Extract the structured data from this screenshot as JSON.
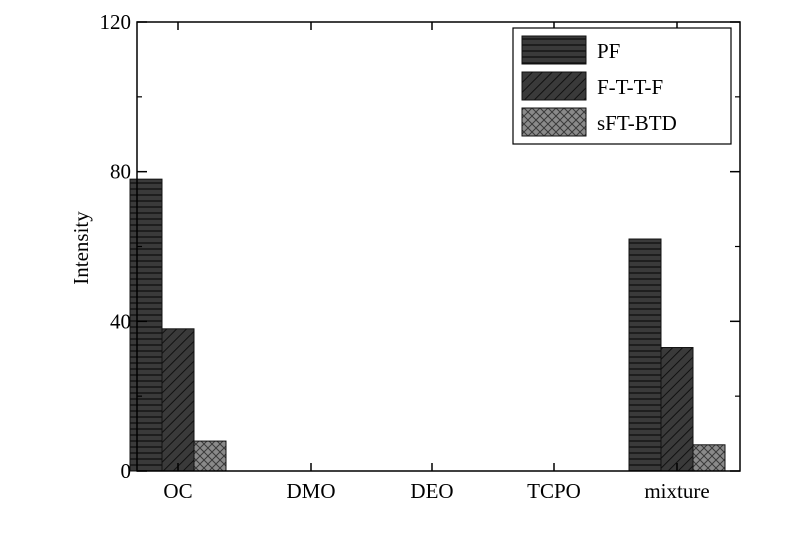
{
  "chart_data": {
    "type": "bar",
    "categories": [
      "OC",
      "DMO",
      "DEO",
      "TCPO",
      "mixture"
    ],
    "series": [
      {
        "name": "PF",
        "values": [
          78,
          0,
          0,
          0,
          62
        ],
        "color": "#3a3a3a",
        "pattern": "horizontal-lines"
      },
      {
        "name": "F-T-T-F",
        "values": [
          38,
          0,
          0,
          0,
          33
        ],
        "color": "#3a3a3a",
        "pattern": "diagonal-hatch"
      },
      {
        "name": "sFT-BTD",
        "values": [
          8,
          0,
          0,
          0,
          7
        ],
        "color": "#8a8a8a",
        "pattern": "crosshatch"
      }
    ],
    "ylabel": "Intensity",
    "ylim": [
      0,
      120
    ],
    "yticks": [
      "0",
      "40",
      "80",
      "120"
    ],
    "legend": "top-right",
    "grid": false
  }
}
